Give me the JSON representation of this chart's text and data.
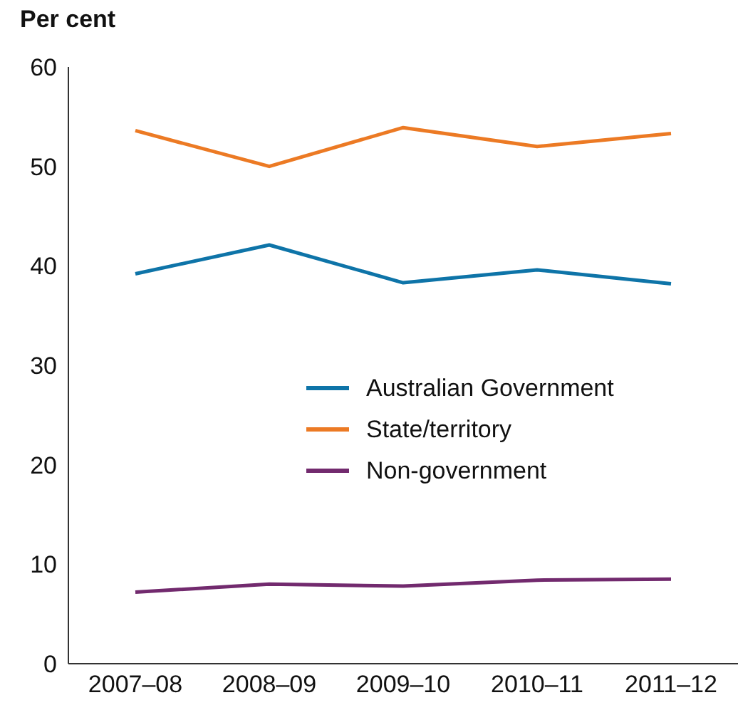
{
  "chart_data": {
    "type": "line",
    "ylabel": "Per cent",
    "categories": [
      "2007–08",
      "2008–09",
      "2009–10",
      "2010–11",
      "2011–12"
    ],
    "series": [
      {
        "name": "Australian Government",
        "color": "#0e74a8",
        "values": [
          39.2,
          42.1,
          38.3,
          39.6,
          38.2
        ]
      },
      {
        "name": "State/territory",
        "color": "#ec7a24",
        "values": [
          53.6,
          50.0,
          53.9,
          52.0,
          53.3
        ]
      },
      {
        "name": "Non-government",
        "color": "#722a6e",
        "values": [
          7.2,
          8.0,
          7.8,
          8.4,
          8.5
        ]
      }
    ],
    "ylim": [
      0,
      60
    ],
    "yticks": [
      0,
      10,
      20,
      30,
      40,
      50,
      60
    ],
    "grid": false,
    "legend": "right",
    "marker": "none",
    "line_style": "solid"
  }
}
